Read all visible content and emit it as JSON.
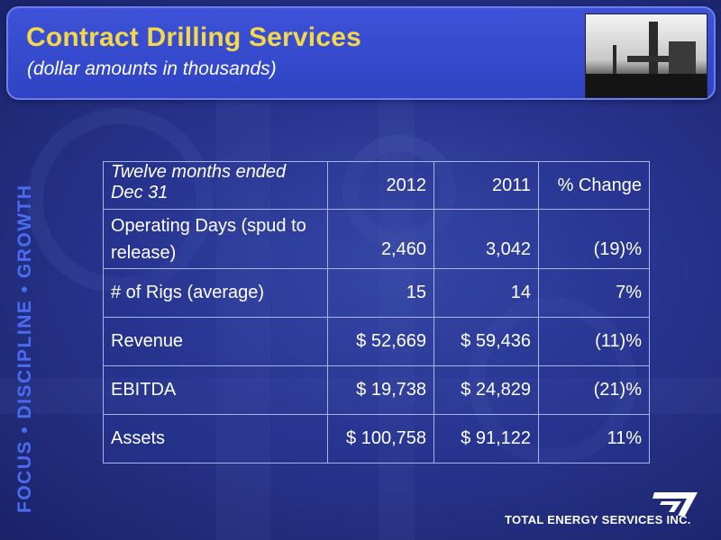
{
  "header": {
    "title": "Contract Drilling Services",
    "subtitle": "(dollar amounts in thousands)",
    "photo": "drilling-rig-photo"
  },
  "sidebar": {
    "tagline": "FOCUS • DISCIPLINE • GROWTH"
  },
  "table": {
    "caption": "Twelve months ended Dec 31",
    "columns": [
      "2012",
      "2011",
      "% Change"
    ],
    "rows": [
      {
        "label": "Operating Days (spud to release)",
        "v2012": "2,460",
        "v2011": "3,042",
        "change": "(19)%"
      },
      {
        "label": "# of Rigs (average)",
        "v2012": "15",
        "v2011": "14",
        "change": "7%"
      },
      {
        "label": "Revenue",
        "v2012": "$ 52,669",
        "v2011": "$ 59,436",
        "change": "(11)%"
      },
      {
        "label": "EBITDA",
        "v2012": "$ 19,738",
        "v2011": "$ 24,829",
        "change": "(21)%"
      },
      {
        "label": "Assets",
        "v2012": "$ 100,758",
        "v2011": "$ 91,122",
        "change": "11%"
      }
    ]
  },
  "footer": {
    "company": "TOTAL ENERGY SERVICES INC.",
    "logo": "total-energy-logo-icon"
  },
  "colors": {
    "title": "#f2d84a",
    "tagline": "#4a6cf0",
    "header_bg": "#3246c8"
  }
}
